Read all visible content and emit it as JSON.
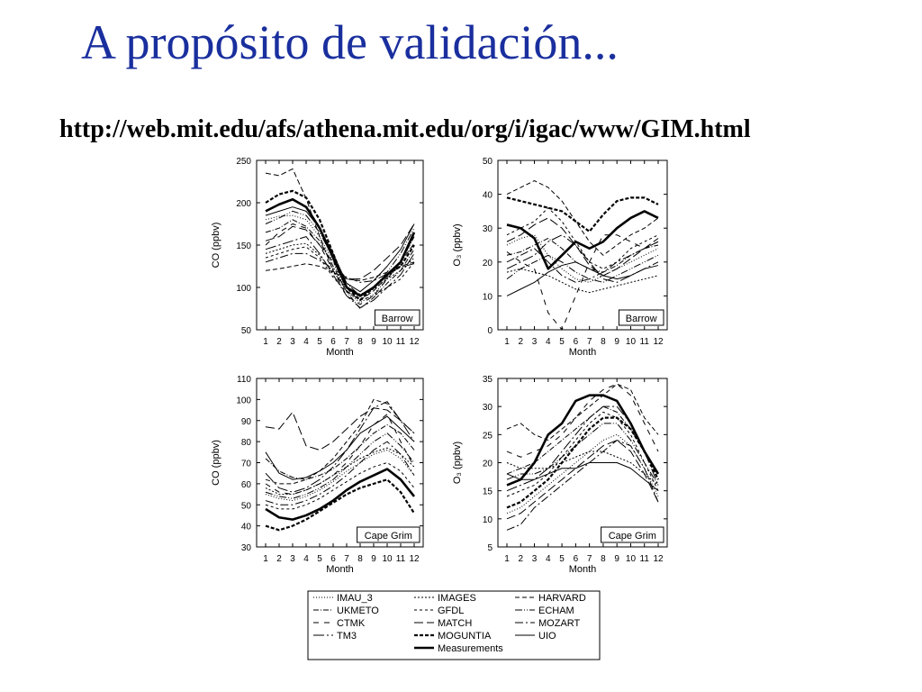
{
  "slide": {
    "title": "A propósito de validación...",
    "url": "http://web.mit.edu/afs/athena.mit.edu/org/i/igac/www/GIM.html"
  },
  "legend": [
    {
      "name": "IMAU_3",
      "dash": "1,2",
      "width": 1
    },
    {
      "name": "IMAGES",
      "dash": "2,2",
      "width": 1
    },
    {
      "name": "HARVARD",
      "dash": "5,3",
      "width": 1
    },
    {
      "name": "UKMETO",
      "dash": "6,2,1,2",
      "width": 1
    },
    {
      "name": "GFDL",
      "dash": "3,3",
      "width": 1
    },
    {
      "name": "ECHAM",
      "dash": "8,2,1,2,1,2",
      "width": 1
    },
    {
      "name": "CTMK",
      "dash": "6,6",
      "width": 1
    },
    {
      "name": "MATCH",
      "dash": "10,4",
      "width": 1
    },
    {
      "name": "MOZART",
      "dash": "9,3,2,3",
      "width": 1
    },
    {
      "name": "TM3",
      "dash": "12,3,2,3",
      "width": 1
    },
    {
      "name": "MOGUNTIA",
      "dash": "4,2",
      "width": 2.2
    },
    {
      "name": "UIO",
      "dash": "",
      "width": 1
    },
    {
      "name": "Measurements",
      "dash": "",
      "width": 2.6
    }
  ],
  "chart_data": [
    {
      "type": "line",
      "station": "Barrow",
      "xlabel": "Month",
      "ylabel": "CO (ppbv)",
      "x": [
        1,
        2,
        3,
        4,
        5,
        6,
        7,
        8,
        9,
        10,
        11,
        12
      ],
      "ylim": [
        50,
        250
      ],
      "yticks": [
        50,
        100,
        150,
        200,
        250
      ],
      "series": [
        {
          "name": "Measurements",
          "values": [
            190,
            198,
            204,
            195,
            170,
            135,
            100,
            90,
            100,
            115,
            130,
            165
          ]
        },
        {
          "name": "MOGUNTIA",
          "values": [
            200,
            210,
            214,
            206,
            180,
            140,
            100,
            85,
            100,
            115,
            125,
            150
          ]
        },
        {
          "name": "IMAU_3",
          "values": [
            180,
            184,
            185,
            180,
            160,
            130,
            95,
            82,
            92,
            110,
            128,
            160
          ]
        },
        {
          "name": "UKMETO",
          "values": [
            165,
            170,
            180,
            172,
            155,
            125,
            95,
            75,
            88,
            105,
            120,
            145
          ]
        },
        {
          "name": "CTMK",
          "values": [
            150,
            165,
            175,
            170,
            150,
            120,
            90,
            80,
            90,
            110,
            130,
            160
          ]
        },
        {
          "name": "TM3",
          "values": [
            145,
            150,
            155,
            160,
            140,
            115,
            90,
            76,
            85,
            100,
            115,
            140
          ]
        },
        {
          "name": "IMAGES",
          "values": [
            140,
            145,
            150,
            152,
            138,
            118,
            100,
            92,
            98,
            110,
            120,
            135
          ]
        },
        {
          "name": "GFDL",
          "values": [
            135,
            140,
            145,
            148,
            135,
            112,
            95,
            85,
            90,
            100,
            110,
            130
          ]
        },
        {
          "name": "MATCH",
          "values": [
            155,
            160,
            172,
            168,
            150,
            130,
            110,
            110,
            120,
            135,
            150,
            175
          ]
        },
        {
          "name": "HARVARD",
          "values": [
            120,
            122,
            125,
            128,
            125,
            118,
            110,
            108,
            112,
            118,
            125,
            130
          ]
        },
        {
          "name": "ECHAM",
          "values": [
            175,
            182,
            190,
            185,
            165,
            135,
            105,
            90,
            100,
            118,
            140,
            170
          ]
        },
        {
          "name": "MOZART",
          "values": [
            130,
            135,
            140,
            140,
            132,
            122,
            112,
            106,
            108,
            116,
            124,
            128
          ]
        },
        {
          "name": "UIO",
          "values": [
            185,
            190,
            195,
            190,
            170,
            140,
            105,
            95,
            108,
            125,
            145,
            175
          ]
        },
        {
          "name": "",
          "values": [
            235,
            232,
            240,
            205,
            160,
            120,
            96,
            85,
            96,
            112,
            130,
            152
          ]
        }
      ]
    },
    {
      "type": "line",
      "station": "Barrow",
      "xlabel": "Month",
      "ylabel": "O₃ (ppbv)",
      "x": [
        1,
        2,
        3,
        4,
        5,
        6,
        7,
        8,
        9,
        10,
        11,
        12
      ],
      "ylim": [
        0,
        50
      ],
      "yticks": [
        0,
        10,
        20,
        30,
        40,
        50
      ],
      "series": [
        {
          "name": "Measurements",
          "values": [
            31,
            30,
            27,
            18,
            22,
            26,
            24,
            26,
            30,
            33,
            35,
            33
          ]
        },
        {
          "name": "MOGUNTIA",
          "values": [
            39,
            38,
            37,
            36,
            35,
            32,
            29,
            34,
            38,
            39,
            39,
            37
          ]
        },
        {
          "name": "IMAU_3",
          "values": [
            25,
            27,
            28,
            22,
            18,
            15,
            14,
            16,
            18,
            20,
            22,
            24
          ]
        },
        {
          "name": "UKMETO",
          "values": [
            22,
            23,
            25,
            27,
            24,
            20,
            18,
            17,
            19,
            22,
            24,
            25
          ]
        },
        {
          "name": "CTMK",
          "values": [
            23,
            20,
            18,
            5,
            0,
            10,
            20,
            28,
            28,
            26,
            24,
            26
          ]
        },
        {
          "name": "TM3",
          "values": [
            18,
            20,
            22,
            26,
            28,
            25,
            20,
            15,
            14,
            16,
            18,
            20
          ]
        },
        {
          "name": "IMAGES",
          "values": [
            17,
            18,
            17,
            16,
            14,
            12,
            11,
            12,
            13,
            14,
            15,
            16
          ]
        },
        {
          "name": "GFDL",
          "values": [
            28,
            30,
            32,
            36,
            32,
            26,
            20,
            18,
            20,
            24,
            26,
            28
          ]
        },
        {
          "name": "MATCH",
          "values": [
            26,
            28,
            31,
            33,
            30,
            25,
            19,
            16,
            18,
            21,
            24,
            27
          ]
        },
        {
          "name": "HARVARD",
          "values": [
            40,
            42,
            44,
            42,
            38,
            32,
            26,
            22,
            25,
            28,
            30,
            33
          ]
        },
        {
          "name": "ECHAM",
          "values": [
            15,
            18,
            20,
            22,
            20,
            17,
            15,
            14,
            16,
            18,
            20,
            22
          ]
        },
        {
          "name": "MOZART",
          "values": [
            20,
            22,
            24,
            20,
            16,
            14,
            15,
            17,
            20,
            22,
            24,
            26
          ]
        },
        {
          "name": "UIO",
          "values": [
            10,
            12,
            14,
            17,
            19,
            20,
            18,
            16,
            15,
            16,
            18,
            19
          ]
        }
      ]
    },
    {
      "type": "line",
      "station": "Cape Grim",
      "xlabel": "Month",
      "ylabel": "CO (ppbv)",
      "x": [
        1,
        2,
        3,
        4,
        5,
        6,
        7,
        8,
        9,
        10,
        11,
        12
      ],
      "ylim": [
        30,
        110
      ],
      "yticks": [
        30,
        40,
        50,
        60,
        70,
        80,
        90,
        100,
        110
      ],
      "series": [
        {
          "name": "Measurements",
          "values": [
            48,
            44,
            43,
            45,
            48,
            52,
            57,
            61,
            64,
            67,
            62,
            54
          ]
        },
        {
          "name": "MOGUNTIA",
          "values": [
            40,
            38,
            40,
            43,
            47,
            51,
            55,
            58,
            60,
            62,
            56,
            46
          ]
        },
        {
          "name": "IMAU_3",
          "values": [
            55,
            53,
            52,
            54,
            57,
            61,
            66,
            70,
            74,
            76,
            72,
            64
          ]
        },
        {
          "name": "UKMETO",
          "values": [
            72,
            66,
            63,
            62,
            64,
            67,
            72,
            78,
            84,
            88,
            84,
            76
          ]
        },
        {
          "name": "CTMK",
          "values": [
            60,
            56,
            55,
            57,
            60,
            64,
            70,
            78,
            88,
            93,
            80,
            68
          ]
        },
        {
          "name": "TM3",
          "values": [
            65,
            58,
            56,
            58,
            62,
            68,
            76,
            86,
            96,
            99,
            90,
            80
          ]
        },
        {
          "name": "IMAGES",
          "values": [
            58,
            55,
            55,
            57,
            60,
            64,
            68,
            72,
            75,
            77,
            74,
            68
          ]
        },
        {
          "name": "GFDL",
          "values": [
            50,
            48,
            48,
            50,
            53,
            57,
            61,
            65,
            68,
            70,
            66,
            58
          ]
        },
        {
          "name": "MATCH",
          "values": [
            87,
            86,
            94,
            78,
            76,
            80,
            86,
            92,
            96,
            95,
            90,
            84
          ]
        },
        {
          "name": "HARVARD",
          "values": [
            62,
            60,
            60,
            62,
            66,
            72,
            80,
            88,
            100,
            98,
            90,
            84
          ]
        },
        {
          "name": "ECHAM",
          "values": [
            56,
            54,
            53,
            55,
            58,
            62,
            68,
            74,
            80,
            84,
            78,
            70
          ]
        },
        {
          "name": "MOZART",
          "values": [
            52,
            50,
            50,
            52,
            55,
            59,
            64,
            70,
            76,
            80,
            74,
            64
          ]
        },
        {
          "name": "UIO",
          "values": [
            75,
            65,
            62,
            63,
            66,
            70,
            76,
            84,
            88,
            92,
            86,
            80
          ]
        }
      ]
    },
    {
      "type": "line",
      "station": "Cape Grim",
      "xlabel": "Month",
      "ylabel": "O₃ (ppbv)",
      "x": [
        1,
        2,
        3,
        4,
        5,
        6,
        7,
        8,
        9,
        10,
        11,
        12
      ],
      "ylim": [
        5,
        35
      ],
      "yticks": [
        5,
        10,
        15,
        20,
        25,
        30,
        35
      ],
      "series": [
        {
          "name": "Measurements",
          "values": [
            16,
            17,
            20,
            25,
            27,
            31,
            32,
            32,
            31,
            27,
            22,
            18
          ]
        },
        {
          "name": "MOGUNTIA",
          "values": [
            12,
            13,
            15,
            17,
            20,
            23,
            26,
            28,
            28,
            26,
            22,
            17
          ]
        },
        {
          "name": "IMAU_3",
          "values": [
            11,
            12,
            14,
            16,
            18,
            20,
            22,
            24,
            25,
            23,
            19,
            14
          ]
        },
        {
          "name": "UKMETO",
          "values": [
            18,
            19,
            20,
            22,
            24,
            26,
            28,
            30,
            29,
            26,
            22,
            18
          ]
        },
        {
          "name": "CTMK",
          "values": [
            22,
            21,
            22,
            23,
            25,
            28,
            31,
            33,
            34,
            32,
            27,
            22
          ]
        },
        {
          "name": "TM3",
          "values": [
            15,
            16,
            17,
            19,
            22,
            25,
            28,
            30,
            30,
            27,
            22,
            16
          ]
        },
        {
          "name": "IMAGES",
          "values": [
            20,
            19,
            19,
            19,
            20,
            21,
            22,
            22,
            21,
            20,
            18,
            16
          ]
        },
        {
          "name": "GFDL",
          "values": [
            14,
            15,
            16,
            18,
            21,
            24,
            27,
            29,
            28,
            25,
            20,
            15
          ]
        },
        {
          "name": "MATCH",
          "values": [
            10,
            11,
            13,
            15,
            17,
            19,
            21,
            23,
            24,
            22,
            18,
            13
          ]
        },
        {
          "name": "HARVARD",
          "values": [
            26,
            27,
            25,
            24,
            26,
            28,
            30,
            32,
            34,
            33,
            28,
            25
          ]
        },
        {
          "name": "ECHAM",
          "values": [
            17,
            18,
            18,
            19,
            21,
            23,
            25,
            27,
            27,
            24,
            20,
            16
          ]
        },
        {
          "name": "MOZART",
          "values": [
            8,
            9,
            12,
            14,
            16,
            18,
            20,
            22,
            24,
            23,
            19,
            13
          ]
        },
        {
          "name": "UIO",
          "values": [
            18,
            17,
            17,
            18,
            19,
            19,
            20,
            20,
            20,
            19,
            17,
            15
          ]
        }
      ]
    }
  ]
}
